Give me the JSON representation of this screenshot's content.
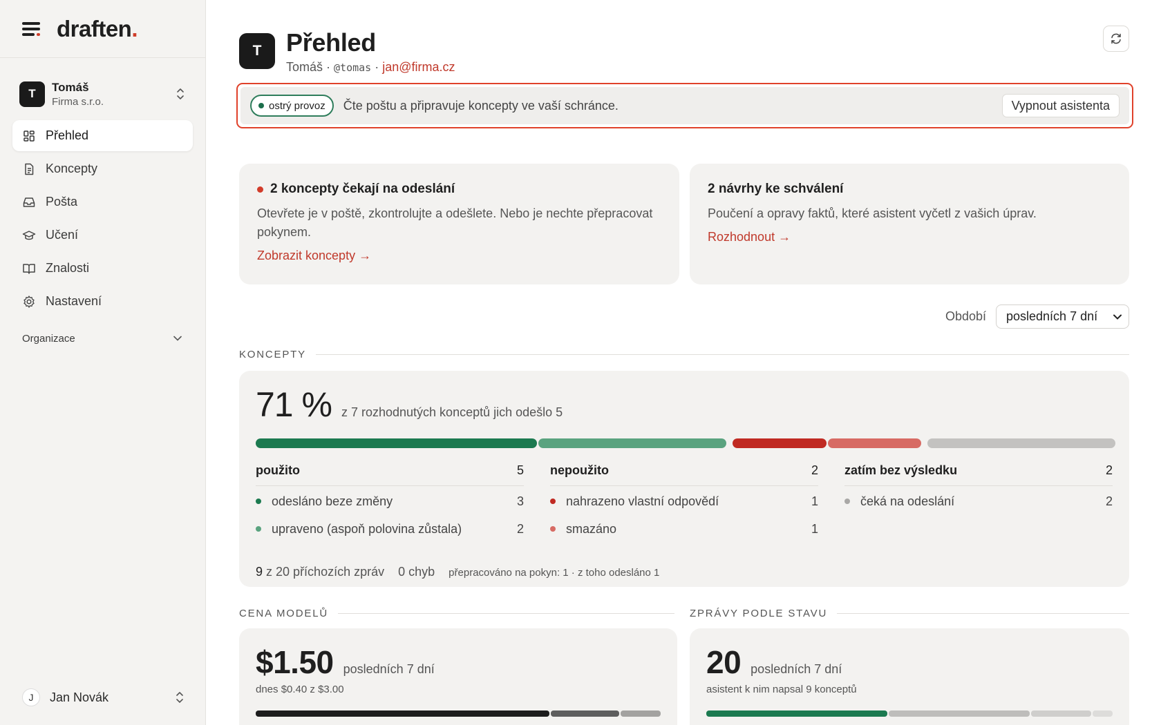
{
  "brand": {
    "name": "draften",
    "dot": "."
  },
  "org": {
    "initial": "T",
    "name": "Tomáš",
    "company": "Firma s.r.o."
  },
  "nav": [
    {
      "label": "Přehled",
      "icon": "grid-icon"
    },
    {
      "label": "Koncepty",
      "icon": "document-icon"
    },
    {
      "label": "Pošta",
      "icon": "inbox-icon"
    },
    {
      "label": "Učení",
      "icon": "graduation-cap-icon"
    },
    {
      "label": "Znalosti",
      "icon": "book-icon"
    },
    {
      "label": "Nastavení",
      "icon": "gear-icon"
    }
  ],
  "sidebar_section": "Organizace",
  "user": {
    "initial": "J",
    "name": "Jan Novák"
  },
  "header": {
    "initial": "T",
    "title": "Přehled",
    "name": "Tomáš",
    "sep": "·",
    "handle": "@tomas",
    "email": "jan@firma.cz"
  },
  "status": {
    "badge": "ostrý provoz",
    "text": "Čte poštu a připravuje koncepty ve vaší schránce.",
    "button": "Vypnout asistenta"
  },
  "cards": {
    "drafts": {
      "title": "2 koncepty čekají na odeslání",
      "text": "Otevřete je v poště, zkontrolujte a odešlete. Nebo je nechte přepracovat pokynem.",
      "link": "Zobrazit koncepty →"
    },
    "proposals": {
      "title": "2 návrhy ke schválení",
      "text": "Poučení a opravy faktů, které asistent vyčetl z vašich úprav.",
      "link": "Rozhodnout →"
    }
  },
  "period": {
    "label": "Období",
    "value": "posledních 7 dní"
  },
  "koncepty": {
    "section": "KONCEPTY",
    "percent": "71 %",
    "desc": "z 7 rozhodnutých konceptů jich odešlo 5",
    "bar": [
      {
        "group": 0,
        "value": 3,
        "color": "#1c7a50"
      },
      {
        "group": 0,
        "value": 2,
        "color": "#5aa37f"
      },
      {
        "group": 1,
        "value": 1,
        "color": "#c02a22"
      },
      {
        "group": 1,
        "value": 1,
        "color": "#d76b64"
      },
      {
        "group": 2,
        "value": 2,
        "color": "#c3c2c0"
      }
    ],
    "columns": [
      {
        "title": "použito",
        "count": "5",
        "rows": [
          {
            "label": "odesláno beze změny",
            "count": "3",
            "color": "#1c7a50"
          },
          {
            "label": "upraveno (aspoň polovina zůstala)",
            "count": "2",
            "color": "#5aa37f"
          }
        ]
      },
      {
        "title": "nepoužito",
        "count": "2",
        "rows": [
          {
            "label": "nahrazeno vlastní odpovědí",
            "count": "1",
            "color": "#c02a22"
          },
          {
            "label": "smazáno",
            "count": "1",
            "color": "#d76b64"
          }
        ]
      },
      {
        "title": "zatím bez výsledku",
        "count": "2",
        "rows": [
          {
            "label": "čeká na odeslání",
            "count": "2",
            "color": "#a9a8a6"
          }
        ]
      }
    ],
    "footer": {
      "handled": "9",
      "handled_rest": "z 20 příchozích zpráv",
      "errors": "0 chyb",
      "rework": "přepracováno na pokyn: 1 · z toho odesláno 1"
    }
  },
  "cena": {
    "section": "CENA MODELŮ",
    "value": "$1.50",
    "period": "posledních 7 dní",
    "note": "dnes $0.40 z $3.00",
    "bar": [
      {
        "value": 73,
        "color": "#1d1d1d"
      },
      {
        "value": 17,
        "color": "#5e5e5e"
      },
      {
        "value": 10,
        "color": "#a3a2a0"
      }
    ]
  },
  "zpravy": {
    "section": "ZPRÁVY PODLE STAVU",
    "value": "20",
    "period": "posledních 7 dní",
    "note": "asistent k nim napsal 9 konceptů",
    "bar": [
      {
        "value": 45,
        "color": "#1c7a50"
      },
      {
        "value": 35,
        "color": "#bebdbb"
      },
      {
        "value": 15,
        "color": "#cfcecc"
      },
      {
        "value": 5,
        "color": "#dddcda"
      }
    ]
  }
}
